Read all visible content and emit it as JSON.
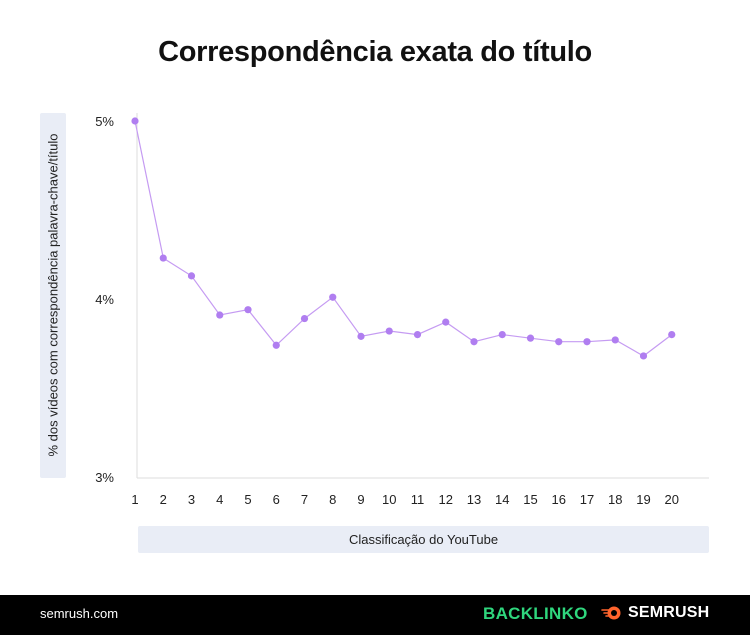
{
  "chart_data": {
    "type": "line",
    "title": "Correspondência exata do título",
    "xlabel": "Classificação do YouTube",
    "ylabel": "% dos vídeos com correspondência palavra-chave/título",
    "x": [
      1,
      2,
      3,
      4,
      5,
      6,
      7,
      8,
      9,
      10,
      11,
      12,
      13,
      14,
      15,
      16,
      17,
      18,
      19,
      20
    ],
    "y": [
      5.0,
      4.23,
      4.13,
      3.91,
      3.94,
      3.74,
      3.89,
      4.01,
      3.79,
      3.82,
      3.8,
      3.87,
      3.76,
      3.8,
      3.78,
      3.76,
      3.76,
      3.77,
      3.68,
      3.8
    ],
    "ylim": [
      3,
      5
    ],
    "yticks": [
      {
        "value": 5,
        "label": "5%"
      },
      {
        "value": 4,
        "label": "4%"
      },
      {
        "value": 3,
        "label": "3%"
      }
    ],
    "xticks": [
      "1",
      "2",
      "3",
      "4",
      "5",
      "6",
      "7",
      "8",
      "9",
      "10",
      "11",
      "12",
      "13",
      "14",
      "15",
      "16",
      "17",
      "18",
      "19",
      "20"
    ],
    "grid": false,
    "colors": {
      "line": "#c59bf2",
      "marker": "#b07ef0",
      "axis": "#dddddd"
    }
  },
  "footer": {
    "site": "semrush.com",
    "brand1": "BACKLINKO",
    "brand2": "SEMRUSH"
  }
}
